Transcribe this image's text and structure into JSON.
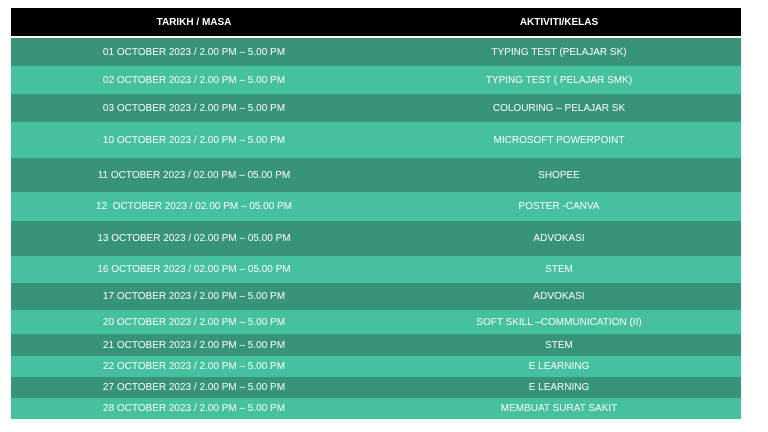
{
  "table": {
    "header": [
      "TARIKH / MASA",
      "AKTIVITI/KELAS"
    ],
    "rows": [
      [
        "01 OCTOBER 2023 / 2.00 PM – 5.00 PM",
        "TYPING TEST (PELAJAR SK)"
      ],
      [
        "02 OCTOBER 2023 / 2.00 PM – 5.00 PM",
        "TYPING TEST ( PELAJAR SMK)"
      ],
      [
        "03 OCTOBER 2023 / 2.00 PM – 5.00 PM",
        "COLOURING – PELAJAR SK"
      ],
      [
        "10 OCTOBER 2023 / 2.00 PM – 5.00 PM",
        "MICROSOFT POWERPOINT"
      ],
      [
        "11 OCTOBER 2023 / 02.00 PM – 05.00 PM",
        "SHOPEE"
      ],
      [
        "12  OCTOBER 2023 / 02.00 PM – 05.00 PM",
        "POSTER -CANVA"
      ],
      [
        "13 OCTOBER 2023 / 02.00 PM – 05.00 PM",
        "ADVOKASI"
      ],
      [
        "16 OCTOBER 2023 / 02.00 PM – 05.00 PM",
        "STEM"
      ],
      [
        "17 OCTOBER 2023 / 2.00 PM – 5.00 PM",
        "ADVOKASI"
      ],
      [
        "20 OCTOBER 2023 / 2.00 PM – 5.00 PM",
        "SOFT SKILL –COMMUNICATION (II)"
      ],
      [
        "21 OCTOBER 2023 / 2.00 PM – 5.00 PM",
        "STEM"
      ],
      [
        "22 OCTOBER 2023 / 2.00 PM – 5.00 PM",
        "E LEARNING"
      ],
      [
        "27 OCTOBER 2023 / 2.00 PM – 5.00 PM",
        "E LEARNING"
      ],
      [
        "28 OCTOBER 2023 / 2.00 PM – 5.00 PM",
        "MEMBUAT SURAT SAKIT"
      ]
    ]
  }
}
